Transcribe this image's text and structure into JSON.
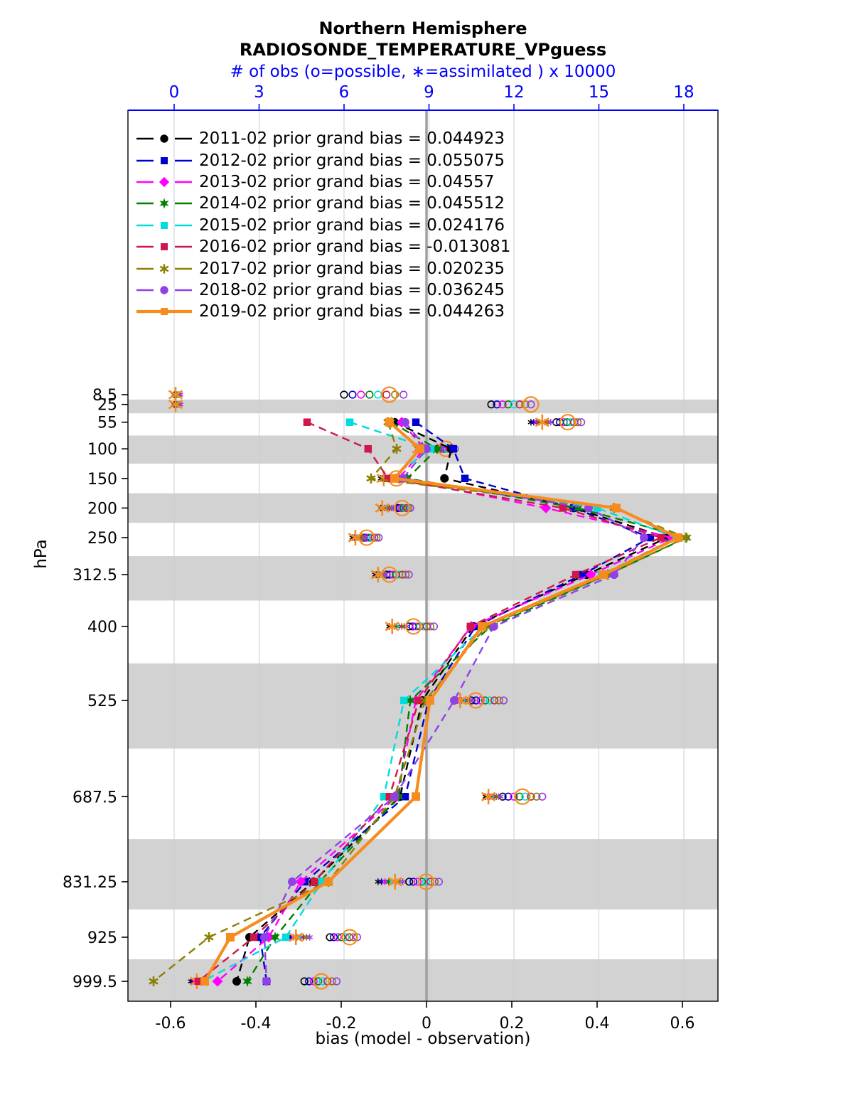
{
  "title": {
    "line1": "Northern Hemisphere",
    "line2": "RADIOSONDE_TEMPERATURE_VPguess"
  },
  "axes": {
    "top": {
      "label": "# of obs (o=possible, ∗=assimilated ) x 10000",
      "ticks": [
        0,
        3,
        6,
        9,
        12,
        15,
        18
      ],
      "color": "#0000ff"
    },
    "bottom": {
      "label": "bias (model - observation)",
      "ticks": [
        -0.6,
        -0.4,
        -0.2,
        0,
        0.2,
        0.4,
        0.6
      ]
    },
    "left": {
      "label": "hPa",
      "tick_levels": [
        8.5,
        25,
        55,
        100,
        150,
        200,
        250,
        312.5,
        400,
        525,
        687.5,
        831.25,
        925,
        999.5
      ]
    }
  },
  "style_colors": {
    "band_gray": "#d2d2d2",
    "grid_line": "#c9cbe0",
    "zero_line": "#a0a0a0",
    "axis_blue": "#0000ff"
  },
  "chart_data": {
    "type": "line",
    "orientation": "vertical-profile",
    "levels_hpa": [
      8.5,
      25,
      55,
      100,
      150,
      200,
      250,
      312.5,
      400,
      525,
      687.5,
      831.25,
      925,
      999.5
    ],
    "bias_levels_hpa": [
      55,
      100,
      150,
      200,
      250,
      312.5,
      400,
      525,
      687.5,
      831.25,
      925,
      999.5
    ],
    "bias_axis_range": [
      -0.7,
      0.68
    ],
    "obs_axis_range": [
      -1.6,
      19.2
    ],
    "series": [
      {
        "name": "2011-02",
        "legend_label": "2011-02 prior grand bias = 0.044923",
        "grand_bias": 0.044923,
        "color": "#000000",
        "marker": "circle",
        "line": "dashed",
        "bias": [
          -0.075,
          0.058,
          0.042,
          0.345,
          0.565,
          0.375,
          0.11,
          -0.01,
          -0.062,
          -0.265,
          -0.415,
          -0.445
        ]
      },
      {
        "name": "2012-02",
        "legend_label": "2012-02 prior grand bias = 0.055075",
        "grand_bias": 0.055075,
        "color": "#0000cc",
        "marker": "square",
        "line": "dashed",
        "bias": [
          -0.025,
          0.063,
          0.09,
          0.345,
          0.525,
          0.365,
          0.115,
          0.005,
          -0.05,
          -0.285,
          -0.39,
          -0.375
        ]
      },
      {
        "name": "2013-02",
        "legend_label": "2013-02 prior grand bias = 0.04557",
        "grand_bias": 0.04557,
        "color": "#ff00ff",
        "marker": "diamond",
        "line": "dashed",
        "bias": [
          -0.058,
          -0.005,
          -0.065,
          0.28,
          0.575,
          0.385,
          0.105,
          -0.025,
          -0.07,
          -0.295,
          -0.37,
          -0.49
        ]
      },
      {
        "name": "2014-02",
        "legend_label": "2014-02 prior grand bias = 0.045512",
        "grand_bias": 0.045512,
        "color": "#008000",
        "marker": "star6",
        "line": "dashed",
        "bias": [
          -0.083,
          0.025,
          -0.045,
          0.355,
          0.61,
          0.425,
          0.15,
          -0.038,
          -0.065,
          -0.25,
          -0.355,
          -0.42
        ]
      },
      {
        "name": "2015-02",
        "legend_label": "2015-02 prior grand bias = 0.024176",
        "grand_bias": 0.024176,
        "color": "#00dcdc",
        "marker": "square",
        "line": "dashed",
        "bias": [
          -0.18,
          0.01,
          -0.085,
          0.4,
          0.585,
          0.41,
          0.135,
          -0.053,
          -0.1,
          -0.245,
          -0.33,
          -0.525
        ]
      },
      {
        "name": "2016-02",
        "legend_label": "2016-02 prior grand bias = -0.013081",
        "grand_bias": -0.013081,
        "color": "#d0164a",
        "marker": "square",
        "line": "dashed",
        "bias": [
          -0.28,
          -0.137,
          -0.09,
          0.32,
          0.55,
          0.35,
          0.103,
          -0.018,
          -0.087,
          -0.263,
          -0.405,
          -0.535
        ]
      },
      {
        "name": "2017-02",
        "legend_label": "2017-02 prior grand bias = 0.020235",
        "grand_bias": 0.020235,
        "color": "#8b8000",
        "marker": "asterisk",
        "line": "dashed",
        "bias": [
          -0.09,
          -0.07,
          -0.13,
          0.44,
          0.608,
          0.425,
          0.14,
          -0.003,
          -0.075,
          -0.23,
          -0.51,
          -0.64
        ]
      },
      {
        "name": "2018-02",
        "legend_label": "2018-02 prior grand bias = 0.036245",
        "grand_bias": 0.036245,
        "color": "#9140e8",
        "marker": "circle",
        "line": "dashed",
        "bias": [
          -0.05,
          0.0,
          -0.055,
          0.38,
          0.51,
          0.44,
          0.158,
          0.065,
          -0.075,
          -0.315,
          -0.38,
          -0.375
        ]
      },
      {
        "name": "2019-02",
        "legend_label": "2019-02 prior grand bias = 0.044263",
        "grand_bias": 0.044263,
        "color": "#f78c1e",
        "marker": "square",
        "line": "solid",
        "bias": [
          -0.087,
          -0.015,
          -0.075,
          0.445,
          0.59,
          0.415,
          0.13,
          0.008,
          -0.025,
          -0.23,
          -0.46,
          -0.52
        ]
      }
    ],
    "obs_counts_x10000": [
      {
        "level": 8.5,
        "assimilated_range": [
          0.0,
          0.25
        ],
        "possible_range": [
          6.0,
          8.4
        ],
        "assimilated_2019": 0.05,
        "possible_2019": 7.6
      },
      {
        "level": 25,
        "assimilated_range": [
          0.0,
          0.25
        ],
        "possible_range": [
          11.2,
          12.8
        ],
        "assimilated_2019": 0.05,
        "possible_2019": 12.6
      },
      {
        "level": 55,
        "assimilated_range": [
          12.6,
          13.4
        ],
        "possible_range": [
          13.5,
          14.5
        ],
        "assimilated_2019": 13.0,
        "possible_2019": 13.9
      },
      {
        "level": 100,
        "assimilated_range": [
          8.6,
          9.6
        ],
        "possible_range": [
          9.3,
          10.0
        ],
        "assimilated_2019": 8.65,
        "possible_2019": 9.6
      },
      {
        "level": 150,
        "assimilated_range": [
          7.3,
          7.8
        ],
        "possible_range": [
          7.6,
          8.3
        ],
        "assimilated_2019": 7.4,
        "possible_2019": 7.85
      },
      {
        "level": 200,
        "assimilated_range": [
          7.3,
          7.8
        ],
        "possible_range": [
          7.9,
          8.4
        ],
        "assimilated_2019": 7.35,
        "possible_2019": 8.05
      },
      {
        "level": 250,
        "assimilated_range": [
          6.3,
          6.8
        ],
        "possible_range": [
          6.7,
          7.3
        ],
        "assimilated_2019": 6.4,
        "possible_2019": 6.8
      },
      {
        "level": 312.5,
        "assimilated_range": [
          7.1,
          7.5
        ],
        "possible_range": [
          7.5,
          8.4
        ],
        "assimilated_2019": 7.2,
        "possible_2019": 7.6
      },
      {
        "level": 400,
        "assimilated_range": [
          7.6,
          8.3
        ],
        "possible_range": [
          8.3,
          9.3
        ],
        "assimilated_2019": 7.7,
        "possible_2019": 8.45
      },
      {
        "level": 525,
        "assimilated_range": [
          10.0,
          10.6
        ],
        "possible_range": [
          10.5,
          11.8
        ],
        "assimilated_2019": 10.1,
        "possible_2019": 10.65
      },
      {
        "level": 687.5,
        "assimilated_range": [
          11.0,
          11.6
        ],
        "possible_range": [
          11.6,
          13.2
        ],
        "assimilated_2019": 11.1,
        "possible_2019": 12.3
      },
      {
        "level": 831.25,
        "assimilated_range": [
          7.2,
          8.2
        ],
        "possible_range": [
          8.3,
          9.5
        ],
        "assimilated_2019": 7.8,
        "possible_2019": 8.9
      },
      {
        "level": 925,
        "assimilated_range": [
          4.0,
          4.9
        ],
        "possible_range": [
          5.5,
          6.6
        ],
        "assimilated_2019": 4.3,
        "possible_2019": 6.2
      },
      {
        "level": 999.5,
        "assimilated_range": [
          0.6,
          1.1
        ],
        "possible_range": [
          4.6,
          5.9
        ],
        "assimilated_2019": 0.8,
        "possible_2019": 5.2
      }
    ]
  }
}
